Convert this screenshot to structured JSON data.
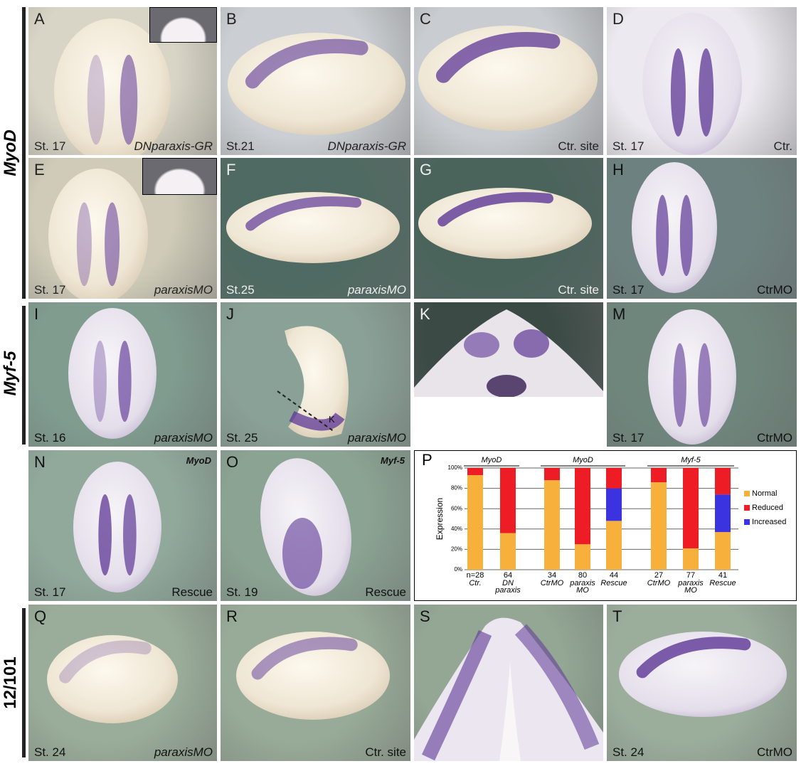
{
  "row_labels": [
    "MyoD",
    "Myf-5",
    "12/101"
  ],
  "panels": [
    {
      "letter": "A",
      "stage": "St. 17",
      "label": "DNparaxis-GR"
    },
    {
      "letter": "B",
      "stage": "St.21",
      "label": "DNparaxis-GR"
    },
    {
      "letter": "C",
      "label": "Ctr. site"
    },
    {
      "letter": "D",
      "stage": "St. 17",
      "label": "Ctr."
    },
    {
      "letter": "E",
      "stage": "St. 17",
      "label": "paraxisMO"
    },
    {
      "letter": "F",
      "stage": "St.25",
      "label": "paraxisMO"
    },
    {
      "letter": "G",
      "label": "Ctr. site"
    },
    {
      "letter": "H",
      "stage": "St. 17",
      "label": "CtrMO"
    },
    {
      "letter": "I",
      "stage": "St. 16",
      "label": "paraxisMO"
    },
    {
      "letter": "J",
      "stage": "St. 25",
      "label": "paraxisMO",
      "annotation": "K"
    },
    {
      "letter": "K"
    },
    {
      "letter": "M",
      "stage": "St. 17",
      "label": "CtrMO"
    },
    {
      "letter": "N",
      "stage": "St. 17",
      "label": "Rescue",
      "gene": "MyoD"
    },
    {
      "letter": "O",
      "stage": "St. 19",
      "label": "Rescue",
      "gene": "Myf-5"
    },
    {
      "letter": "Q",
      "stage": "St. 24",
      "label": "paraxisMO"
    },
    {
      "letter": "R",
      "label": "Ctr. site"
    },
    {
      "letter": "S"
    },
    {
      "letter": "T",
      "stage": "St. 24",
      "label": "CtrMO"
    }
  ],
  "chart_data": {
    "type": "bar",
    "stacked": true,
    "panel_letter": "P",
    "ylabel": "Expression",
    "groups": [
      {
        "name": "MyoD",
        "from": 0,
        "to": 1
      },
      {
        "name": "MyoD",
        "from": 2,
        "to": 4
      },
      {
        "name": "Myf-5",
        "from": 5,
        "to": 7
      }
    ],
    "n_labels": [
      "n=28",
      "64",
      "34",
      "80",
      "44",
      "27",
      "77",
      "41"
    ],
    "categories": [
      "Ctr.",
      "DN paraxis",
      "CtrMO",
      "paraxis MO",
      "Rescue",
      "CtrMO",
      "paraxis MO",
      "Rescue"
    ],
    "series": [
      {
        "name": "Normal",
        "color": "#f7b03c",
        "values": [
          93,
          36,
          88,
          25,
          48,
          86,
          21,
          37
        ]
      },
      {
        "name": "Reduced",
        "color": "#ee1c25",
        "values": [
          7,
          64,
          12,
          75,
          20,
          14,
          79,
          26
        ]
      },
      {
        "name": "Increased",
        "color": "#3b32e0",
        "values": [
          0,
          0,
          0,
          0,
          32,
          0,
          0,
          37
        ]
      }
    ],
    "ylim": [
      0,
      100
    ],
    "yticks": [
      {
        "value": 0,
        "label": "0%"
      },
      {
        "value": 20,
        "label": "20%"
      },
      {
        "value": 40,
        "label": "40%"
      },
      {
        "value": 60,
        "label": "60%"
      },
      {
        "value": 80,
        "label": "80%"
      },
      {
        "value": 100,
        "label": "100%"
      }
    ],
    "grid": true,
    "legend": "right"
  }
}
